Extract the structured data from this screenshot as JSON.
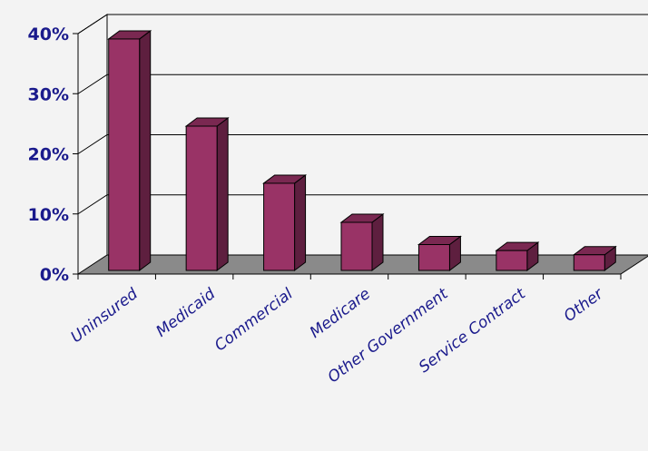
{
  "chart_data": {
    "type": "bar",
    "style": "3d",
    "categories": [
      "Uninsured",
      "Medicaid",
      "Commercial",
      "Medicare",
      "Other Government",
      "Service Contract",
      "Other"
    ],
    "values": [
      38.5,
      24,
      14.5,
      8,
      4.3,
      3.3,
      2.6
    ],
    "y_ticks": [
      "0%",
      "10%",
      "20%",
      "30%",
      "40%"
    ],
    "ylim": [
      0,
      40
    ],
    "grid": true,
    "legend": "none",
    "colors": {
      "bar_front": "#993366",
      "bar_side": "#5e1f3f",
      "bar_top": "#7a2851",
      "floor": "#8a8a8a",
      "tick_text": "#1a1a8c"
    }
  }
}
